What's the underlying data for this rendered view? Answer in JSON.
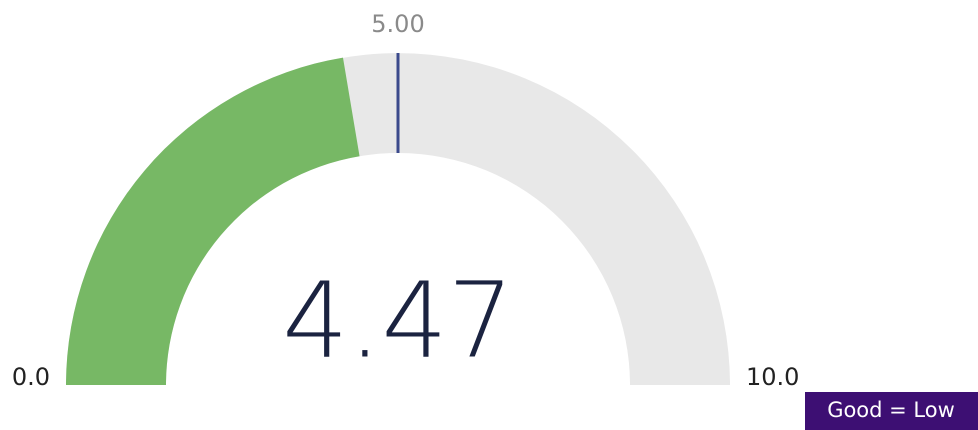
{
  "chart_data": {
    "type": "gauge",
    "value": 4.47,
    "ylim": [
      0,
      10
    ],
    "yticks": [
      {
        "value": 0,
        "label": "0.0"
      },
      {
        "value": 10,
        "label": "10.0"
      }
    ],
    "target": {
      "value": 5,
      "label": "5.00"
    },
    "annotation": "Good = Low",
    "color": "#77b865",
    "track_color": "#e8e8e8",
    "target_color": "#3b4a8c",
    "annotation_color": "#3d0f73"
  }
}
